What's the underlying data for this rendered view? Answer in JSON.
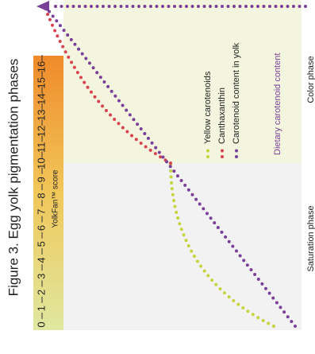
{
  "title": "Figure 3. Egg yolk pigmentation phases",
  "scale": {
    "label": "YolkFan™ score",
    "ticks": [
      0,
      1,
      2,
      3,
      4,
      5,
      6,
      7,
      8,
      9,
      10,
      11,
      12,
      13,
      14,
      15,
      16
    ]
  },
  "phases": [
    "Saturation phase",
    "Color phase"
  ],
  "legend": [
    {
      "label": "Yellow carotenoids",
      "color": "#c5d33c"
    },
    {
      "label": "Canthaxanthin",
      "color": "#d9434f"
    },
    {
      "label": "Carotenoid content in yolk",
      "color": "#7a3f98"
    }
  ],
  "axis_label": "Dietary carotenoid content"
}
